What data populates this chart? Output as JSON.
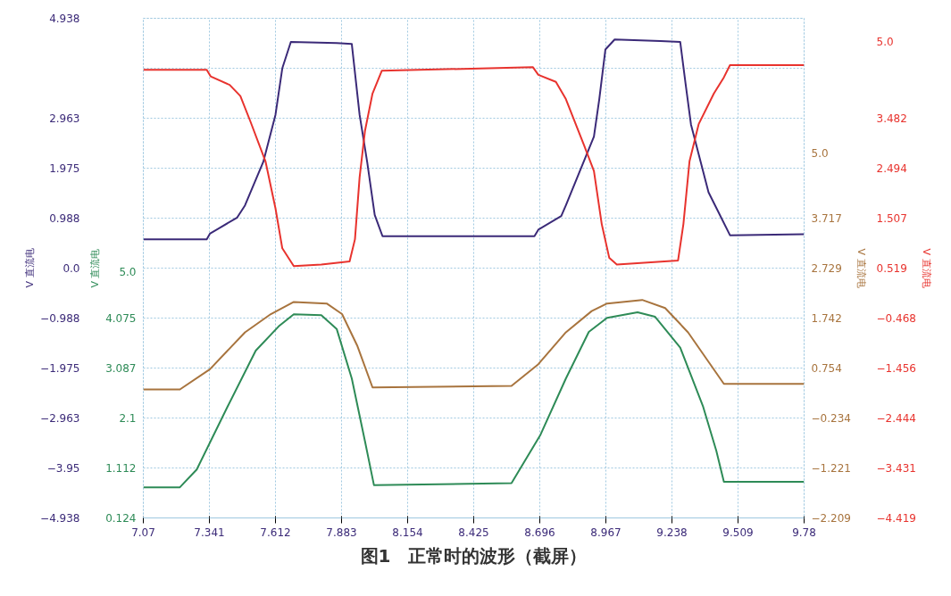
{
  "chart_data": [
    {
      "type": "line",
      "title": "图1　正常时的波形（截屏）",
      "ylabel": "V 直流电",
      "y2label": "V 直流电",
      "xlim": [
        7.07,
        9.78
      ],
      "xticks": [
        7.07,
        7.341,
        7.612,
        7.883,
        8.154,
        8.425,
        8.696,
        8.967,
        9.238,
        9.509,
        9.78
      ],
      "ylim": [
        -4.938,
        4.938
      ],
      "yticks": [
        -4.938,
        -3.95,
        -2.963,
        -1.975,
        -0.988,
        {
          "value": 0,
          "label": "0.0"
        },
        0.988,
        1.975,
        2.963,
        {
          "value": 3.95,
          "label": null
        },
        4.938
      ],
      "y2lim": [
        0.124,
        10.0
      ],
      "y2ticks": [
        0.124,
        1.112,
        2.1,
        3.087,
        4.075,
        {
          "value": 5,
          "label": "5.0"
        }
      ],
      "grid": true,
      "series": [
        {
          "color": "#3b2a78",
          "x": [
            7.07,
            7.33,
            7.343,
            7.455,
            7.487,
            7.562,
            7.612,
            7.64,
            7.675,
            7.863,
            7.925,
            7.957,
            7.988,
            8.019,
            8.051,
            8.674,
            8.69,
            8.784,
            8.803,
            8.918,
            8.94,
            8.965,
            9.003,
            9.191,
            9.272,
            9.294,
            9.316,
            9.388,
            9.476,
            9.78
          ],
          "values": [
            0.57,
            0.57,
            0.68,
            1.0,
            1.24,
            2.1,
            3.03,
            3.95,
            4.47,
            4.45,
            4.43,
            3.03,
            2.1,
            1.05,
            0.63,
            0.63,
            0.76,
            1.03,
            1.24,
            2.6,
            3.34,
            4.32,
            4.52,
            4.49,
            4.47,
            3.64,
            2.84,
            1.5,
            0.65,
            0.67
          ]
        },
        {
          "color": "#2e8b57",
          "axis": "y2",
          "x": [
            7.07,
            7.22,
            7.289,
            7.415,
            7.531,
            7.625,
            7.687,
            7.8,
            7.863,
            7.925,
            7.979,
            8.016,
            8.58,
            8.699,
            8.803,
            8.897,
            8.972,
            9.097,
            9.169,
            9.272,
            9.366,
            9.42,
            9.451,
            9.78
          ],
          "values": [
            0.73,
            0.73,
            1.08,
            2.32,
            3.43,
            3.91,
            4.15,
            4.13,
            3.86,
            2.88,
            1.64,
            0.77,
            0.81,
            1.77,
            2.88,
            3.8,
            4.08,
            4.19,
            4.1,
            3.49,
            2.32,
            1.45,
            0.84,
            0.84
          ]
        }
      ]
    },
    {
      "type": "line",
      "tick_labels": "y",
      "ylabel": "V 直流电",
      "y2label": "V 直流电",
      "xlim": [
        7.07,
        9.78
      ],
      "ylim": [
        -2.209,
        7.667
      ],
      "yticks": [
        -2.209,
        -1.221,
        -0.234,
        0.754,
        1.742,
        2.729,
        3.717,
        {
          "value": 5,
          "label": "5.0"
        }
      ],
      "y2lim": [
        -4.419,
        5.457
      ],
      "y2ticks": [
        -4.419,
        -3.431,
        -2.444,
        -1.456,
        -0.468,
        0.519,
        1.507,
        2.494,
        3.482,
        {
          "value": 5,
          "label": "5.0"
        }
      ],
      "series": [
        {
          "color": "#a8743e",
          "x": [
            7.07,
            7.22,
            7.343,
            7.487,
            7.593,
            7.687,
            7.822,
            7.885,
            7.947,
            8.01,
            8.58,
            8.69,
            8.803,
            8.909,
            8.972,
            9.116,
            9.21,
            9.304,
            9.451,
            9.78
          ],
          "values": [
            0.33,
            0.33,
            0.73,
            1.46,
            1.82,
            2.06,
            2.03,
            1.82,
            1.2,
            0.37,
            0.4,
            0.83,
            1.46,
            1.88,
            2.03,
            2.1,
            1.94,
            1.46,
            0.44,
            0.44
          ]
        },
        {
          "color": "#e8332e",
          "axis": "y2",
          "x": [
            7.07,
            7.33,
            7.346,
            7.424,
            7.468,
            7.509,
            7.571,
            7.612,
            7.64,
            7.687,
            7.8,
            7.916,
            7.938,
            7.957,
            7.979,
            8.01,
            8.048,
            8.668,
            8.69,
            8.762,
            8.803,
            8.878,
            8.918,
            8.95,
            8.981,
            9.012,
            9.263,
            9.285,
            9.31,
            9.348,
            9.41,
            9.451,
            9.476,
            9.78
          ],
          "values": [
            4.44,
            4.44,
            4.31,
            4.14,
            3.92,
            3.42,
            2.63,
            1.7,
            0.91,
            0.56,
            0.59,
            0.65,
            1.09,
            2.31,
            3.23,
            3.97,
            4.42,
            4.49,
            4.34,
            4.2,
            3.86,
            2.94,
            2.44,
            1.39,
            0.72,
            0.59,
            0.67,
            1.39,
            2.63,
            3.37,
            3.97,
            4.29,
            4.53,
            4.53
          ]
        }
      ]
    }
  ]
}
